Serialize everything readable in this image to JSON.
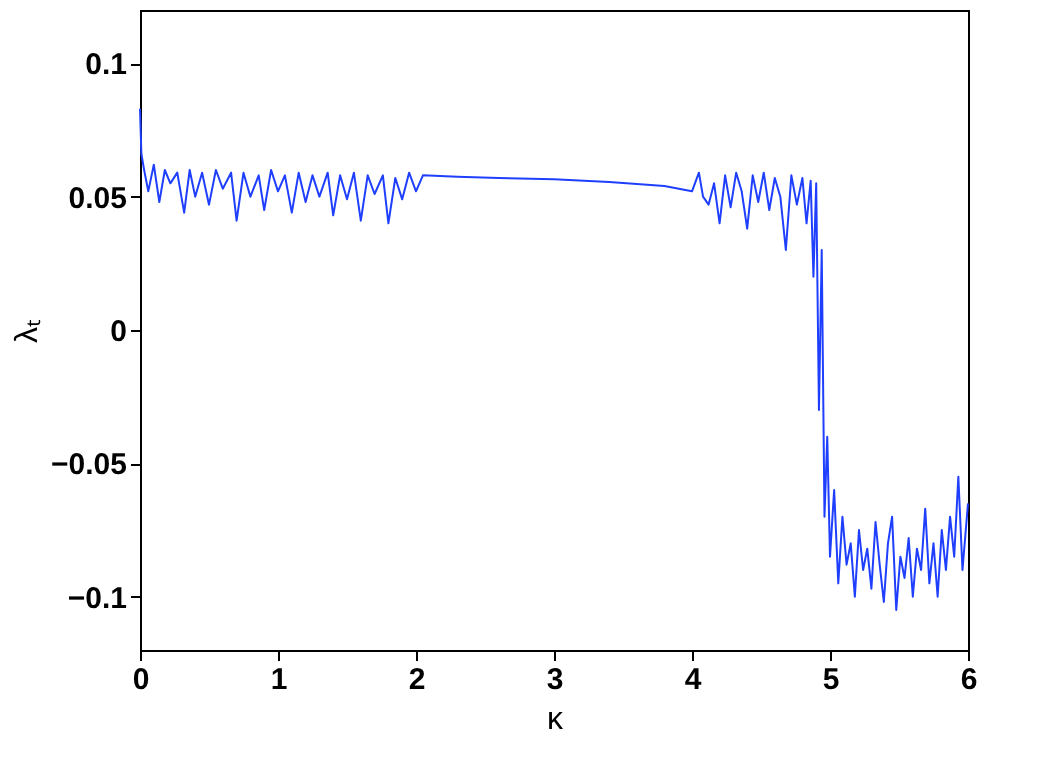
{
  "chart_data": {
    "type": "line",
    "xlabel": "κ",
    "ylabel": "λₜ",
    "x": [
      0,
      0.01,
      0.03,
      0.06,
      0.1,
      0.14,
      0.18,
      0.22,
      0.27,
      0.32,
      0.36,
      0.4,
      0.45,
      0.5,
      0.55,
      0.6,
      0.66,
      0.7,
      0.75,
      0.8,
      0.86,
      0.9,
      0.95,
      1.0,
      1.05,
      1.1,
      1.15,
      1.2,
      1.25,
      1.3,
      1.36,
      1.4,
      1.45,
      1.5,
      1.55,
      1.6,
      1.65,
      1.7,
      1.76,
      1.8,
      1.85,
      1.9,
      1.95,
      2.0,
      2.05,
      2.3,
      2.6,
      3.0,
      3.4,
      3.8,
      4.0,
      4.05,
      4.08,
      4.12,
      4.16,
      4.2,
      4.24,
      4.28,
      4.32,
      4.36,
      4.4,
      4.44,
      4.48,
      4.52,
      4.56,
      4.6,
      4.64,
      4.68,
      4.72,
      4.76,
      4.8,
      4.83,
      4.86,
      4.88,
      4.9,
      4.92,
      4.94,
      4.96,
      4.98,
      5.0,
      5.03,
      5.06,
      5.09,
      5.12,
      5.15,
      5.18,
      5.21,
      5.24,
      5.27,
      5.3,
      5.33,
      5.36,
      5.39,
      5.42,
      5.45,
      5.48,
      5.51,
      5.54,
      5.57,
      5.6,
      5.63,
      5.66,
      5.69,
      5.72,
      5.75,
      5.78,
      5.81,
      5.84,
      5.87,
      5.9,
      5.93,
      5.96,
      6.0
    ],
    "values": [
      0.083,
      0.066,
      0.06,
      0.052,
      0.062,
      0.048,
      0.06,
      0.055,
      0.059,
      0.044,
      0.06,
      0.05,
      0.059,
      0.047,
      0.06,
      0.053,
      0.059,
      0.041,
      0.059,
      0.05,
      0.058,
      0.045,
      0.06,
      0.052,
      0.058,
      0.044,
      0.059,
      0.048,
      0.058,
      0.05,
      0.059,
      0.043,
      0.058,
      0.049,
      0.059,
      0.041,
      0.058,
      0.051,
      0.058,
      0.04,
      0.057,
      0.049,
      0.059,
      0.052,
      0.058,
      0.0575,
      0.057,
      0.0565,
      0.0555,
      0.054,
      0.052,
      0.059,
      0.05,
      0.047,
      0.055,
      0.04,
      0.058,
      0.046,
      0.059,
      0.052,
      0.038,
      0.058,
      0.048,
      0.059,
      0.045,
      0.057,
      0.05,
      0.03,
      0.058,
      0.047,
      0.057,
      0.04,
      0.056,
      0.02,
      0.055,
      -0.03,
      0.03,
      -0.07,
      -0.04,
      -0.085,
      -0.06,
      -0.095,
      -0.07,
      -0.088,
      -0.08,
      -0.1,
      -0.075,
      -0.09,
      -0.082,
      -0.097,
      -0.072,
      -0.088,
      -0.102,
      -0.08,
      -0.07,
      -0.105,
      -0.085,
      -0.093,
      -0.078,
      -0.1,
      -0.082,
      -0.09,
      -0.067,
      -0.095,
      -0.08,
      -0.1,
      -0.075,
      -0.09,
      -0.07,
      -0.085,
      -0.055,
      -0.09,
      -0.065
    ],
    "color": "#1f3fff",
    "xlim": [
      0,
      6
    ],
    "xticks": [
      0,
      1,
      2,
      3,
      4,
      5,
      6
    ],
    "ylim": [
      -0.12,
      0.12
    ],
    "yticks": [
      {
        "value": -0.1,
        "label": "−0.1"
      },
      {
        "value": -0.05,
        "label": "−0.05"
      },
      0,
      0.05,
      0.1
    ],
    "grid": false
  }
}
